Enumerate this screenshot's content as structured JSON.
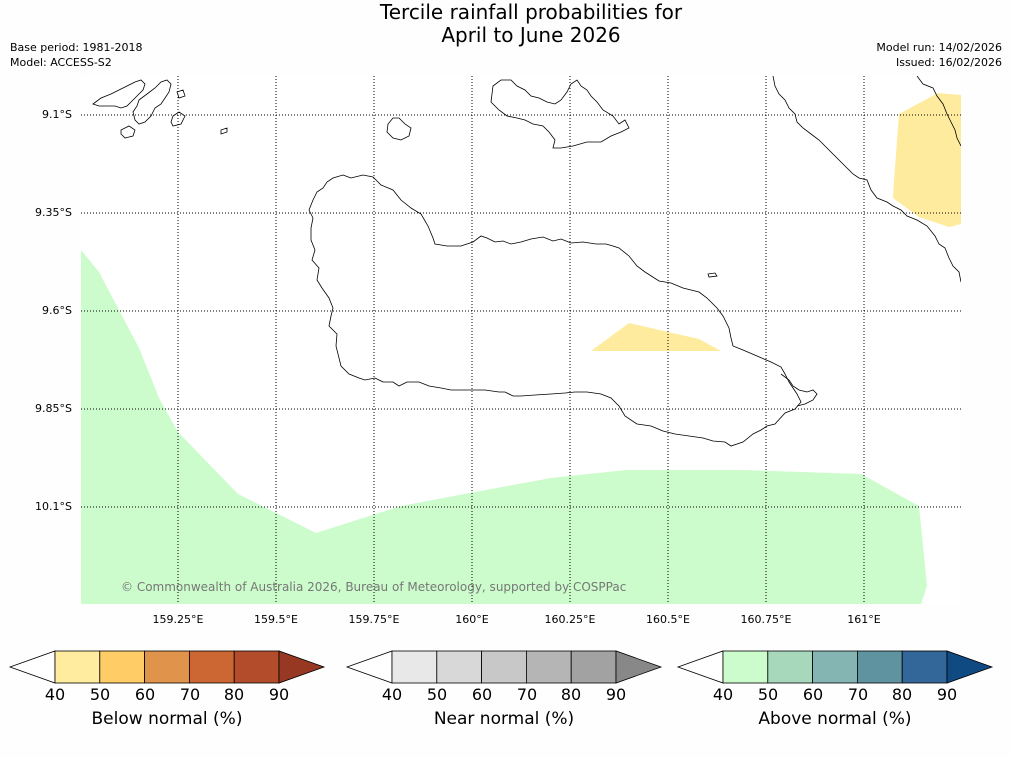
{
  "title": {
    "line1": "Tercile rainfall probabilities for",
    "line2": "April to June 2026"
  },
  "meta": {
    "base_period": "Base period: 1981-2018",
    "model": "Model: ACCESS-S2",
    "model_run": "Model run: 14/02/2026",
    "issued": "Issued: 16/02/2026"
  },
  "map": {
    "lat_labels": [
      "9.1°S",
      "9.35°S",
      "9.6°S",
      "9.85°S",
      "10.1°S"
    ],
    "lon_labels": [
      "159.25°E",
      "159.5°E",
      "159.75°E",
      "160°E",
      "160.25°E",
      "160.5°E",
      "160.75°E",
      "161°E"
    ],
    "lon_range": [
      159.0,
      161.25
    ],
    "lat_range": [
      -9.0,
      -10.35
    ],
    "copyright": "© Commonwealth of Australia 2026, Bureau of Meteorology, supported by COSPPac",
    "colors": {
      "below_40": "#ffeb9e",
      "above_40": "#ccfccc"
    }
  },
  "colorbars": [
    {
      "label": "Below normal (%)",
      "ticks": [
        "40",
        "50",
        "60",
        "70",
        "80",
        "90"
      ],
      "colors": [
        "#ffffff",
        "#ffec9f",
        "#ffcc66",
        "#e0934a",
        "#cc6633",
        "#b24c2a",
        "#963822"
      ]
    },
    {
      "label": "Near normal (%)",
      "ticks": [
        "40",
        "50",
        "60",
        "70",
        "80",
        "90"
      ],
      "colors": [
        "#ffffff",
        "#e8e8e8",
        "#d8d8d8",
        "#c8c8c8",
        "#b5b5b5",
        "#a2a2a2",
        "#888888"
      ]
    },
    {
      "label": "Above normal (%)",
      "ticks": [
        "40",
        "50",
        "60",
        "70",
        "80",
        "90"
      ],
      "colors": [
        "#ffffff",
        "#ccfccc",
        "#a7d8bb",
        "#84b5b2",
        "#5f93a0",
        "#336699",
        "#104a82"
      ]
    }
  ]
}
